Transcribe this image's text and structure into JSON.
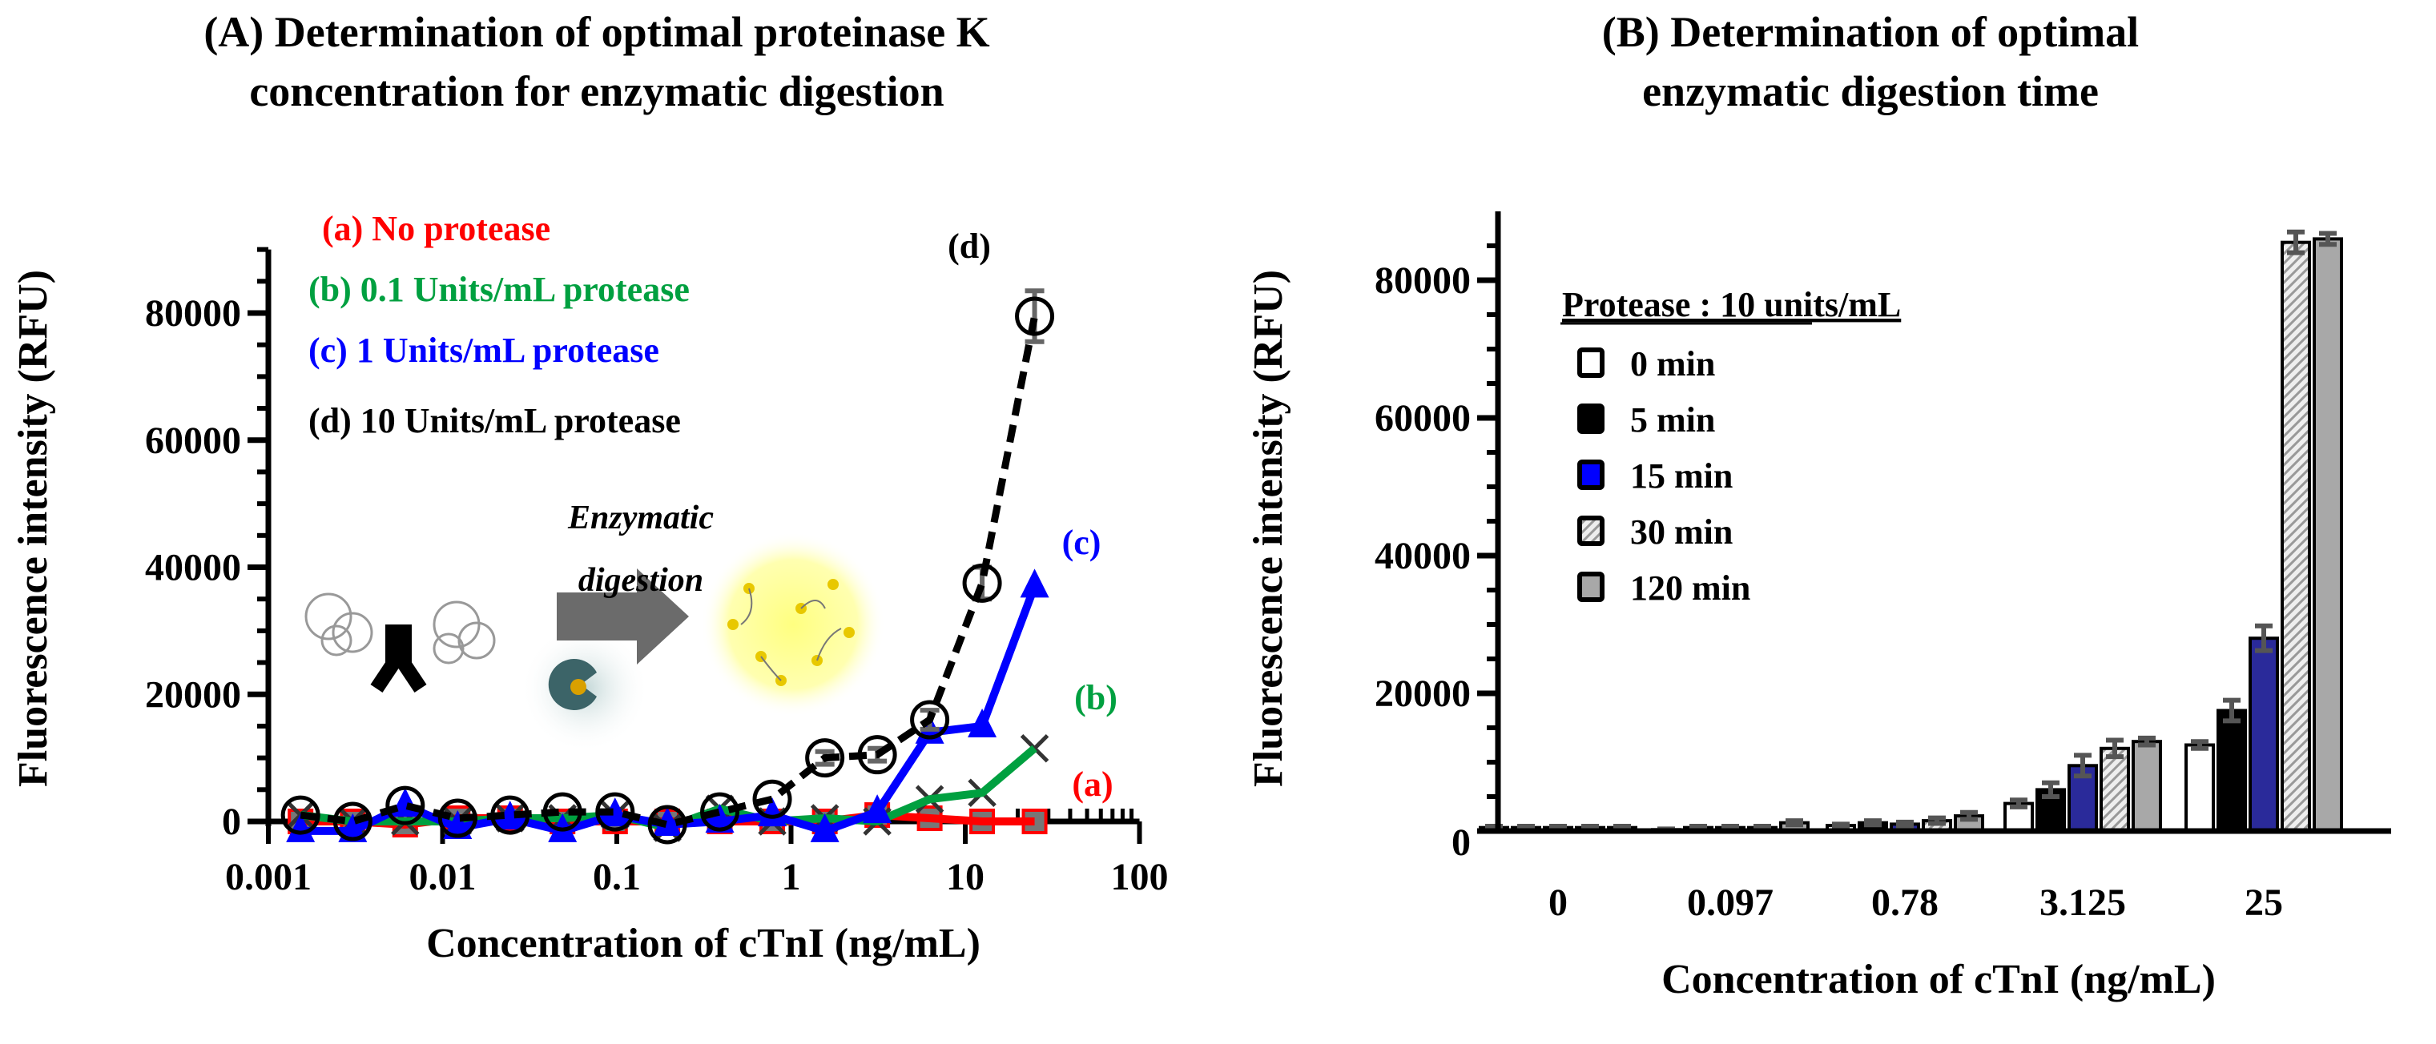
{
  "chart_data": [
    {
      "panel": "A",
      "type": "line",
      "title": [
        "(A) Determination of optimal proteinase K",
        "concentration for enzymatic digestion"
      ],
      "xlabel": "Concentration of cTnI (ng/mL)",
      "ylabel": "Fluorescence intensity (RFU)",
      "xscale": "log",
      "xlim": [
        0.001,
        100
      ],
      "ylim": [
        -2000,
        90000
      ],
      "xticks": [
        "0.001",
        "0.01",
        "0.1",
        "1",
        "10",
        "100"
      ],
      "xtick_values": [
        0.001,
        0.01,
        0.1,
        1,
        10,
        100
      ],
      "yticks": [
        "0",
        "20000",
        "40000",
        "60000",
        "80000"
      ],
      "ytick_values": [
        0,
        20000,
        40000,
        60000,
        80000
      ],
      "x": [
        0.00153,
        0.00305,
        0.0061,
        0.0122,
        0.0244,
        0.0488,
        0.0977,
        0.195,
        0.39,
        0.78,
        1.5625,
        3.125,
        6.25,
        12.5,
        25
      ],
      "series": [
        {
          "key": "a",
          "name": "(a) No protease",
          "label": "(a)",
          "color": "#ff0000",
          "marker": "square",
          "dashed": false,
          "values": [
            0,
            0,
            -500,
            500,
            500,
            0,
            0,
            0,
            0,
            0,
            0,
            1000,
            500,
            0,
            0
          ]
        },
        {
          "key": "b",
          "name": "(b) 0.1 Units/mL protease",
          "label": "(b)",
          "color": "#00a040",
          "marker": "x",
          "dashed": false,
          "values": [
            1000,
            0,
            0,
            0,
            500,
            500,
            1000,
            -1000,
            2000,
            0,
            500,
            0,
            3500,
            4500,
            11500
          ]
        },
        {
          "key": "c",
          "name": "(c) 1 Units/mL protease",
          "label": "(c)",
          "color": "#0000ff",
          "marker": "triangle",
          "dashed": false,
          "values": [
            -1500,
            -1500,
            2500,
            -1000,
            500,
            -1500,
            1000,
            -500,
            0,
            1000,
            -1500,
            1500,
            14000,
            15000,
            37000
          ]
        },
        {
          "key": "d",
          "name": "(d) 10 Units/mL protease",
          "label": "(d)",
          "color": "#000000",
          "marker": "circle",
          "dashed": true,
          "values": [
            1000,
            0,
            2500,
            500,
            1000,
            1500,
            1500,
            -500,
            1500,
            3500,
            10000,
            10500,
            16000,
            37500,
            79500
          ],
          "errors": [
            0,
            0,
            0,
            0,
            0,
            0,
            0,
            0,
            0,
            0,
            1000,
            1000,
            1500,
            2500,
            4000
          ]
        }
      ],
      "legend_placement": "top-left",
      "inset_text": [
        "Enzymatic",
        "digestion"
      ]
    },
    {
      "panel": "B",
      "type": "bar",
      "title": [
        "(B) Determination of optimal",
        "enzymatic digestion time"
      ],
      "xlabel": "Concentration of cTnI (ng/mL)",
      "ylabel": "Fluorescence intensity (RFU)",
      "ylim": [
        0,
        90000
      ],
      "yticks": [
        "0",
        "20000",
        "40000",
        "60000",
        "80000"
      ],
      "ytick_values": [
        0,
        20000,
        40000,
        60000,
        80000
      ],
      "categories": [
        "0",
        "0.097",
        "0.78",
        "3.125",
        "25"
      ],
      "legend_title": "Protease : 10 units/mL",
      "legend_placement": "top-left",
      "series": [
        {
          "name": "0 min",
          "fill": "#ffffff",
          "values": [
            500,
            200,
            800,
            4000,
            12500
          ],
          "errors": [
            200,
            100,
            200,
            500,
            500
          ]
        },
        {
          "name": "5 min",
          "fill": "#000000",
          "values": [
            500,
            500,
            1200,
            6000,
            17500
          ],
          "errors": [
            200,
            200,
            300,
            1000,
            1500
          ]
        },
        {
          "name": "15 min",
          "fill": "#2a2a9a",
          "legend_fill": "#0000ff",
          "values": [
            500,
            500,
            1000,
            9500,
            28000
          ],
          "errors": [
            200,
            200,
            300,
            1500,
            1800
          ]
        },
        {
          "name": "30 min",
          "fill": "pattern",
          "values": [
            500,
            500,
            1500,
            12000,
            85500
          ],
          "errors": [
            200,
            200,
            400,
            1200,
            1500
          ]
        },
        {
          "name": "120 min",
          "fill": "#a8a8a8",
          "values": [
            500,
            1200,
            2200,
            13000,
            86000
          ],
          "errors": [
            200,
            300,
            500,
            500,
            800
          ]
        }
      ]
    }
  ]
}
